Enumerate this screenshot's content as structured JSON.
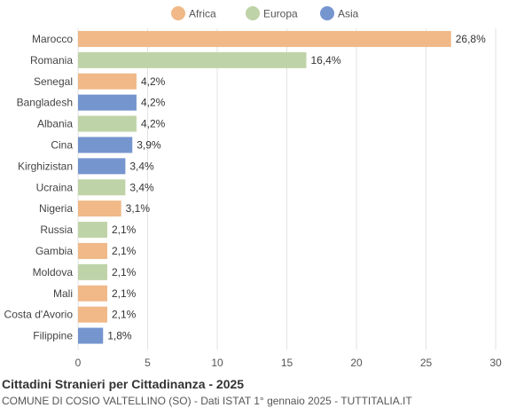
{
  "chart_data": {
    "type": "bar",
    "orientation": "horizontal",
    "title": "Cittadini Stranieri per Cittadinanza - 2025",
    "subtitle": "COMUNE DI COSIO VALTELLINO (SO) - Dati ISTAT 1° gennaio 2025 - TUTTITALIA.IT",
    "xlim": [
      0,
      30
    ],
    "xticks": [
      0,
      5,
      10,
      15,
      20,
      25,
      30
    ],
    "grid": true,
    "legend_position": "top-center",
    "legend": [
      {
        "name": "Africa",
        "color": "#f0b987"
      },
      {
        "name": "Europa",
        "color": "#bfd3a8"
      },
      {
        "name": "Asia",
        "color": "#7595cf"
      }
    ],
    "categories": [
      "Marocco",
      "Romania",
      "Senegal",
      "Bangladesh",
      "Albania",
      "Cina",
      "Kirghizistan",
      "Ucraina",
      "Nigeria",
      "Russia",
      "Gambia",
      "Moldova",
      "Mali",
      "Costa d'Avorio",
      "Filippine"
    ],
    "values": [
      26.8,
      16.4,
      4.2,
      4.2,
      4.2,
      3.9,
      3.4,
      3.4,
      3.1,
      2.1,
      2.1,
      2.1,
      2.1,
      2.1,
      1.8
    ],
    "labels": [
      "26,8%",
      "16,4%",
      "4,2%",
      "4,2%",
      "4,2%",
      "3,9%",
      "3,4%",
      "3,4%",
      "3,1%",
      "2,1%",
      "2,1%",
      "2,1%",
      "2,1%",
      "2,1%",
      "1,8%"
    ],
    "groups": [
      "Africa",
      "Europa",
      "Africa",
      "Asia",
      "Europa",
      "Asia",
      "Asia",
      "Europa",
      "Africa",
      "Europa",
      "Africa",
      "Europa",
      "Africa",
      "Africa",
      "Asia"
    ]
  }
}
